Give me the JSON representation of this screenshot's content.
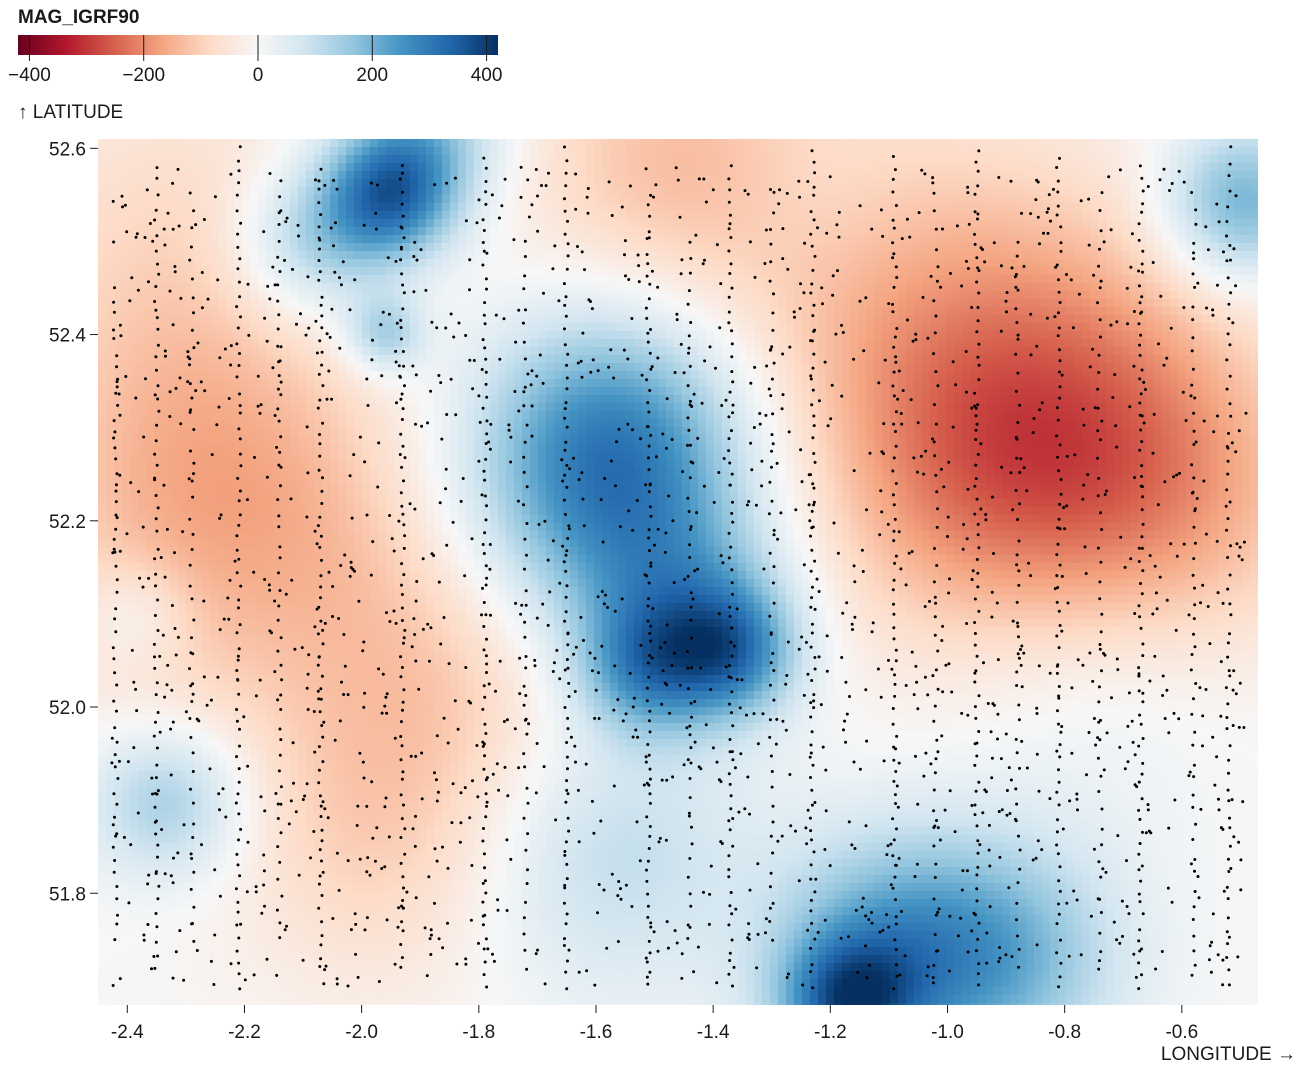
{
  "chart_data": {
    "type": "heatmap",
    "title": "",
    "xlabel": "LONGITUDE →",
    "ylabel": "↑ LATITUDE",
    "xlim": [
      -2.45,
      -0.47
    ],
    "ylim": [
      51.68,
      52.61
    ],
    "x_ticks": [
      "-2.4",
      "-2.2",
      "-2.0",
      "-1.8",
      "-1.6",
      "-1.4",
      "-1.2",
      "-1.0",
      "-0.8",
      "-0.6"
    ],
    "y_ticks": [
      "51.8",
      "52.0",
      "52.2",
      "52.4",
      "52.6"
    ],
    "x_tick_values": [
      -2.4,
      -2.2,
      -2.0,
      -1.8,
      -1.6,
      -1.4,
      -1.2,
      -1.0,
      -0.8,
      -0.6
    ],
    "y_tick_values": [
      51.8,
      52.0,
      52.2,
      52.4,
      52.6
    ],
    "grid": false,
    "legend": {
      "title": "MAG_IGRF90",
      "placement": "top-left",
      "scheme": "RdBu",
      "domain": [
        -420,
        420
      ],
      "ticks": [
        "−400",
        "−200",
        "0",
        "200",
        "400"
      ],
      "tick_values": [
        -400,
        -200,
        0,
        200,
        400
      ],
      "colors": [
        "#67001f",
        "#b2182b",
        "#d6604d",
        "#f4a582",
        "#fddbc7",
        "#f7f7f7",
        "#d1e5f0",
        "#92c5de",
        "#4393c3",
        "#2166ac",
        "#053061"
      ]
    },
    "field_anomalies": [
      {
        "lon": -2.3,
        "lat": 52.5,
        "value": -80,
        "spread": 0.14
      },
      {
        "lon": -2.3,
        "lat": 52.25,
        "value": -120,
        "spread": 0.13
      },
      {
        "lon": -2.35,
        "lat": 52.05,
        "value": -30,
        "spread": 0.1
      },
      {
        "lon": -1.85,
        "lat": 52.05,
        "value": -110,
        "spread": 0.15
      },
      {
        "lon": -1.95,
        "lat": 51.85,
        "value": -80,
        "spread": 0.12
      },
      {
        "lon": -2.1,
        "lat": 52.2,
        "value": -40,
        "spread": 0.12
      },
      {
        "lon": -1.45,
        "lat": 52.58,
        "value": -120,
        "spread": 0.13
      },
      {
        "lon": -1.15,
        "lat": 52.48,
        "value": -70,
        "spread": 0.15
      },
      {
        "lon": -0.8,
        "lat": 52.4,
        "value": -90,
        "spread": 0.14
      },
      {
        "lon": -0.9,
        "lat": 52.23,
        "value": -150,
        "spread": 0.14
      },
      {
        "lon": -0.62,
        "lat": 52.22,
        "value": -130,
        "spread": 0.13
      },
      {
        "lon": -1.0,
        "lat": 52.3,
        "value": -50,
        "spread": 0.13
      },
      {
        "lon": -1.95,
        "lat": 52.55,
        "value": 300,
        "spread": 0.05
      },
      {
        "lon": -2.08,
        "lat": 52.5,
        "value": 170,
        "spread": 0.06
      },
      {
        "lon": -1.96,
        "lat": 52.4,
        "value": 160,
        "spread": 0.03
      },
      {
        "lon": -1.88,
        "lat": 52.62,
        "value": 150,
        "spread": 0.06
      },
      {
        "lon": -1.6,
        "lat": 52.22,
        "value": 240,
        "spread": 0.11
      },
      {
        "lon": -1.55,
        "lat": 52.32,
        "value": 150,
        "spread": 0.1
      },
      {
        "lon": -1.45,
        "lat": 52.1,
        "value": 150,
        "spread": 0.08
      },
      {
        "lon": -1.37,
        "lat": 52.06,
        "value": 230,
        "spread": 0.05
      },
      {
        "lon": -1.52,
        "lat": 52.04,
        "value": 170,
        "spread": 0.05
      },
      {
        "lon": -1.6,
        "lat": 51.85,
        "value": 130,
        "spread": 0.11
      },
      {
        "lon": -2.33,
        "lat": 51.9,
        "value": 160,
        "spread": 0.06
      },
      {
        "lon": -2.38,
        "lat": 52.1,
        "value": 70,
        "spread": 0.04
      },
      {
        "lon": -1.1,
        "lat": 51.74,
        "value": 200,
        "spread": 0.09
      },
      {
        "lon": -0.9,
        "lat": 51.73,
        "value": 170,
        "spread": 0.09
      },
      {
        "lon": -1.17,
        "lat": 51.68,
        "value": 260,
        "spread": 0.05
      },
      {
        "lon": -0.5,
        "lat": 52.54,
        "value": 220,
        "spread": 0.06
      },
      {
        "lon": -0.75,
        "lat": 52.05,
        "value": 60,
        "spread": 0.12
      },
      {
        "lon": -1.25,
        "lat": 52.55,
        "value": 50,
        "spread": 0.08
      }
    ],
    "flight_lines": [
      {
        "lon": -2.42,
        "lat_range": [
          51.75,
          52.45
        ],
        "point_count": 50,
        "seed": 1
      },
      {
        "lon": -2.35,
        "lat_range": [
          51.72,
          52.58
        ],
        "point_count": 60,
        "seed": 2
      },
      {
        "lon": -2.29,
        "lat_range": [
          51.75,
          52.55
        ],
        "point_count": 45,
        "seed": 3
      },
      {
        "lon": -2.21,
        "lat_range": [
          51.7,
          52.6
        ],
        "point_count": 70,
        "seed": 4
      },
      {
        "lon": -2.14,
        "lat_range": [
          51.75,
          52.55
        ],
        "point_count": 50,
        "seed": 5
      },
      {
        "lon": -2.07,
        "lat_range": [
          51.72,
          52.58
        ],
        "point_count": 70,
        "seed": 6
      },
      {
        "lon": -1.93,
        "lat_range": [
          51.72,
          52.58
        ],
        "point_count": 70,
        "seed": 7
      },
      {
        "lon": -1.79,
        "lat_range": [
          51.7,
          52.59
        ],
        "point_count": 70,
        "seed": 8
      },
      {
        "lon": -1.72,
        "lat_range": [
          51.72,
          52.5
        ],
        "point_count": 45,
        "seed": 9
      },
      {
        "lon": -1.65,
        "lat_range": [
          51.7,
          52.6
        ],
        "point_count": 70,
        "seed": 10
      },
      {
        "lon": -1.51,
        "lat_range": [
          51.7,
          52.55
        ],
        "point_count": 70,
        "seed": 11
      },
      {
        "lon": -1.44,
        "lat_range": [
          51.75,
          52.5
        ],
        "point_count": 45,
        "seed": 12
      },
      {
        "lon": -1.37,
        "lat_range": [
          51.7,
          52.58
        ],
        "point_count": 70,
        "seed": 13
      },
      {
        "lon": -1.3,
        "lat_range": [
          51.75,
          52.55
        ],
        "point_count": 45,
        "seed": 14
      },
      {
        "lon": -1.23,
        "lat_range": [
          51.7,
          52.6
        ],
        "point_count": 70,
        "seed": 15
      },
      {
        "lon": -1.09,
        "lat_range": [
          51.7,
          52.59
        ],
        "point_count": 70,
        "seed": 16
      },
      {
        "lon": -1.02,
        "lat_range": [
          51.72,
          52.55
        ],
        "point_count": 45,
        "seed": 17
      },
      {
        "lon": -0.95,
        "lat_range": [
          51.7,
          52.6
        ],
        "point_count": 70,
        "seed": 18
      },
      {
        "lon": -0.88,
        "lat_range": [
          51.72,
          52.5
        ],
        "point_count": 45,
        "seed": 19
      },
      {
        "lon": -0.81,
        "lat_range": [
          51.7,
          52.59
        ],
        "point_count": 70,
        "seed": 20
      },
      {
        "lon": -0.74,
        "lat_range": [
          51.72,
          52.55
        ],
        "point_count": 45,
        "seed": 21
      },
      {
        "lon": -0.67,
        "lat_range": [
          51.7,
          52.58
        ],
        "point_count": 70,
        "seed": 22
      },
      {
        "lon": -0.58,
        "lat_range": [
          51.72,
          52.55
        ],
        "point_count": 50,
        "seed": 23
      },
      {
        "lon": -0.52,
        "lat_range": [
          51.7,
          52.6
        ],
        "point_count": 60,
        "seed": 24
      }
    ],
    "scattered_points": {
      "count": 1700,
      "seed": 99
    }
  }
}
